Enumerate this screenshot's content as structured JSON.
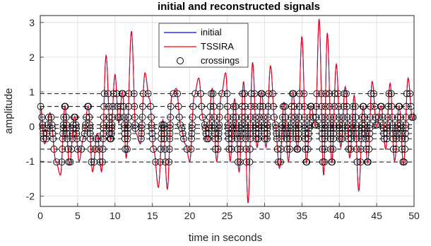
{
  "chart_data": {
    "type": "line",
    "title": "initial and reconstructed signals",
    "xlabel": "time in seconds",
    "ylabel": "amplitude",
    "xlim": [
      0,
      50
    ],
    "ylim": [
      -2.3,
      3.2
    ],
    "xticks": [
      "0",
      "5",
      "10",
      "15",
      "20",
      "25",
      "30",
      "35",
      "40",
      "45",
      "50"
    ],
    "yticks": [
      "-2",
      "-1",
      "0",
      "1",
      "2",
      "3"
    ],
    "grid": true,
    "legend_position": "top-center",
    "series": [
      {
        "name": "initial",
        "color": "#0000ff",
        "style": "solid"
      },
      {
        "name": "TSSIRA",
        "color": "#ff0000",
        "style": "solid"
      },
      {
        "name": "crossings",
        "color": "#000000",
        "style": "circle-markers"
      }
    ],
    "threshold_levels": [
      0.95,
      0.58,
      0.27,
      0.05,
      -0.05,
      -0.2,
      -0.35,
      -0.65,
      -1.02
    ],
    "peaks": [
      [
        0.0,
        0.6
      ],
      [
        0.6,
        -0.5
      ],
      [
        1.3,
        0.4
      ],
      [
        2.1,
        -1.0
      ],
      [
        2.7,
        -1.4
      ],
      [
        3.3,
        0.6
      ],
      [
        3.9,
        -1.1
      ],
      [
        4.6,
        0.3
      ],
      [
        5.2,
        -1.0
      ],
      [
        5.8,
        -0.3
      ],
      [
        6.4,
        0.6
      ],
      [
        7.0,
        -1.3
      ],
      [
        7.6,
        -0.2
      ],
      [
        8.2,
        -1.3
      ],
      [
        8.8,
        2.05
      ],
      [
        9.4,
        -0.4
      ],
      [
        10.0,
        1.5
      ],
      [
        10.5,
        0.1
      ],
      [
        11.0,
        1.0
      ],
      [
        11.5,
        -0.9
      ],
      [
        12.2,
        2.75
      ],
      [
        12.8,
        -0.2
      ],
      [
        13.4,
        -0.5
      ],
      [
        14.0,
        1.55
      ],
      [
        14.6,
        0.8
      ],
      [
        15.2,
        -0.7
      ],
      [
        15.8,
        -1.75
      ],
      [
        16.4,
        0.2
      ],
      [
        17.0,
        -1.8
      ],
      [
        17.6,
        0.9
      ],
      [
        18.2,
        1.1
      ],
      [
        18.8,
        0.0
      ],
      [
        19.4,
        -0.5
      ],
      [
        20.0,
        -1.0
      ],
      [
        20.6,
        0.9
      ],
      [
        21.2,
        1.4
      ],
      [
        21.8,
        0.2
      ],
      [
        22.4,
        -0.4
      ],
      [
        23.0,
        1.1
      ],
      [
        23.6,
        -1.0
      ],
      [
        24.2,
        0.9
      ],
      [
        24.8,
        1.55
      ],
      [
        25.4,
        -1.0
      ],
      [
        26.0,
        0.8
      ],
      [
        26.6,
        -1.3
      ],
      [
        27.2,
        1.3
      ],
      [
        27.8,
        -2.2
      ],
      [
        28.4,
        1.85
      ],
      [
        29.0,
        -0.6
      ],
      [
        29.6,
        1.0
      ],
      [
        30.2,
        -0.6
      ],
      [
        30.8,
        1.75
      ],
      [
        31.4,
        0.1
      ],
      [
        32.0,
        -1.2
      ],
      [
        32.6,
        0.7
      ],
      [
        33.2,
        -1.0
      ],
      [
        33.8,
        1.0
      ],
      [
        34.4,
        -0.7
      ],
      [
        35.0,
        2.6
      ],
      [
        35.6,
        -1.05
      ],
      [
        36.2,
        0.6
      ],
      [
        36.8,
        0.0
      ],
      [
        37.3,
        3.1
      ],
      [
        37.9,
        -1.4
      ],
      [
        38.4,
        2.7
      ],
      [
        39.0,
        -1.05
      ],
      [
        39.6,
        1.8
      ],
      [
        40.2,
        -0.6
      ],
      [
        40.8,
        1.15
      ],
      [
        41.4,
        -0.9
      ],
      [
        42.0,
        0.9
      ],
      [
        42.6,
        -1.85
      ],
      [
        43.2,
        0.6
      ],
      [
        43.8,
        -1.05
      ],
      [
        44.4,
        1.3
      ],
      [
        45.0,
        0.0
      ],
      [
        45.6,
        0.6
      ],
      [
        46.2,
        -0.65
      ],
      [
        46.8,
        1.25
      ],
      [
        47.4,
        -1.0
      ],
      [
        48.0,
        0.6
      ],
      [
        48.6,
        -1.1
      ],
      [
        49.2,
        1.4
      ],
      [
        49.8,
        0.2
      ],
      [
        50.0,
        0.4
      ]
    ]
  }
}
